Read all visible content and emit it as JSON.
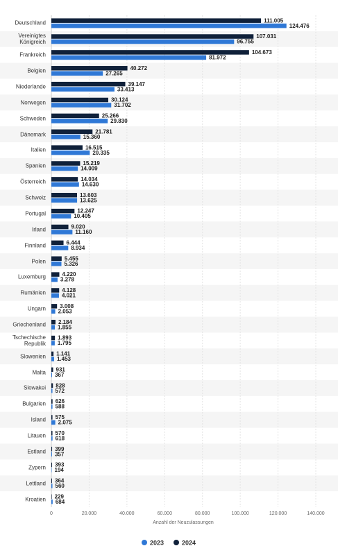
{
  "chart_data": {
    "type": "hbar",
    "x_label": "Anzahl der Neuzulassungen",
    "categories": [
      "Deutschland",
      "Vereinigtes Königreich",
      "Frankreich",
      "Belgien",
      "Niederlande",
      "Norwegen",
      "Schweden",
      "Dänemark",
      "Italien",
      "Spanien",
      "Österreich",
      "Schweiz",
      "Portugal",
      "Irland",
      "Finnland",
      "Polen",
      "Luxemburg",
      "Rumänien",
      "Ungarn",
      "Griechenland",
      "Tschechische Republik",
      "Slowenien",
      "Malta",
      "Slowakei",
      "Bulgarien",
      "Island",
      "Litauen",
      "Estland",
      "Zypern",
      "Lettland",
      "Kroatien"
    ],
    "series": [
      {
        "name": "2023",
        "color": "#2f78d6",
        "values": [
          124476,
          96755,
          81972,
          27265,
          33413,
          31702,
          29830,
          15360,
          20335,
          14009,
          14630,
          13625,
          10405,
          11160,
          8934,
          5326,
          3278,
          4021,
          2053,
          1855,
          1795,
          1453,
          367,
          572,
          588,
          2075,
          618,
          357,
          194,
          560,
          684
        ],
        "value_labels": [
          "124.476",
          "96.755",
          "81.972",
          "27.265",
          "33.413",
          "31.702",
          "29.830",
          "15.360",
          "20.335",
          "14.009",
          "14.630",
          "13.625",
          "10.405",
          "11.160",
          "8.934",
          "5.326",
          "3.278",
          "4.021",
          "2.053",
          "1.855",
          "1.795",
          "1.453",
          "367",
          "572",
          "588",
          "2.075",
          "618",
          "357",
          "194",
          "560",
          "684"
        ]
      },
      {
        "name": "2024",
        "color": "#10213a",
        "values": [
          111005,
          107031,
          104673,
          40272,
          39147,
          30124,
          25266,
          21781,
          16515,
          15219,
          14034,
          13603,
          12247,
          9020,
          6444,
          5455,
          4220,
          4128,
          3008,
          2184,
          1893,
          1141,
          931,
          828,
          626,
          575,
          570,
          399,
          393,
          364,
          229
        ],
        "value_labels": [
          "111.005",
          "107.031",
          "104.673",
          "40.272",
          "39.147",
          "30.124",
          "25.266",
          "21.781",
          "16.515",
          "15.219",
          "14.034",
          "13.603",
          "12.247",
          "9.020",
          "6.444",
          "5.455",
          "4.220",
          "4.128",
          "3.008",
          "2.184",
          "1.893",
          "1.141",
          "931",
          "828",
          "626",
          "575",
          "570",
          "399",
          "393",
          "364",
          "229"
        ]
      }
    ],
    "xlim": [
      0,
      140000
    ],
    "xticks": [
      0,
      {
        "value": 20000,
        "label": "20.000"
      },
      {
        "value": 40000,
        "label": "40.000"
      },
      {
        "value": 60000,
        "label": "60.000"
      },
      {
        "value": 80000,
        "label": "80.000"
      },
      {
        "value": 100000,
        "label": "100.000"
      },
      {
        "value": 120000,
        "label": "120.000"
      },
      {
        "value": 140000,
        "label": "140.000"
      }
    ],
    "grid": true,
    "legend": "bottom"
  }
}
